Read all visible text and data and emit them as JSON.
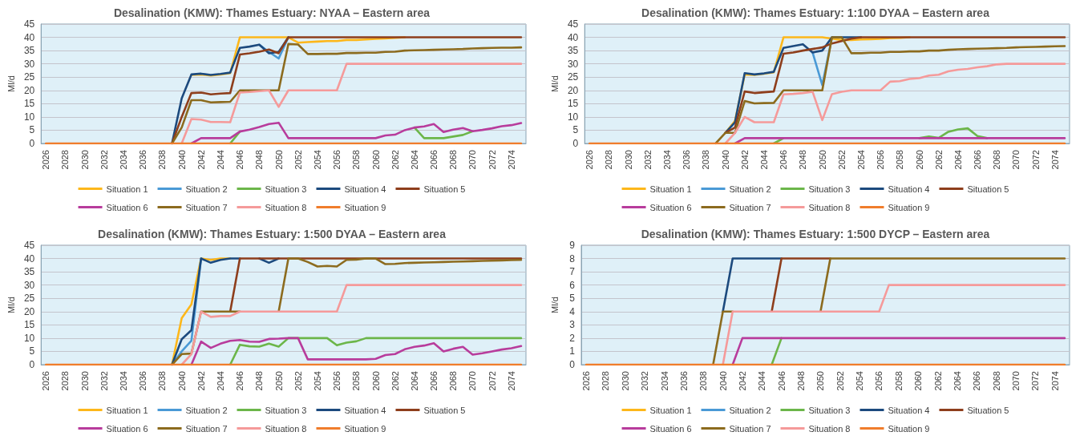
{
  "chart_data": [
    {
      "type": "line",
      "title": "Desalination (KMW): Thames Estuary: NYAA – Eastern area",
      "ylabel": "Ml/d",
      "categories": [
        "2026",
        null,
        "2028",
        null,
        "2030",
        null,
        "2032",
        null,
        "2034",
        null,
        "2036",
        null,
        "2038",
        null,
        "2040",
        null,
        "2042",
        null,
        "2044",
        null,
        "2046",
        null,
        "2048",
        null,
        "2050",
        null,
        "2052",
        null,
        "2054",
        null,
        "2056",
        null,
        "2058",
        null,
        "2060",
        null,
        "2062",
        null,
        "2064",
        null,
        "2066",
        null,
        "2068",
        null,
        "2070",
        null,
        "2072",
        null,
        "2074",
        null
      ],
      "ylim": [
        0,
        45
      ],
      "yticks": [
        0,
        5,
        10,
        15,
        20,
        25,
        30,
        35,
        40,
        45
      ],
      "grid": "y",
      "legend": "bottom",
      "marker": "none",
      "line_style": "solid",
      "series": [
        {
          "name": "Situation 1",
          "color": "#fdb71a",
          "values": [
            null,
            null,
            null,
            null,
            null,
            null,
            null,
            null,
            null,
            null,
            null,
            null,
            null,
            null,
            null,
            25.8,
            26,
            25.6,
            26,
            26.5,
            40,
            40,
            40,
            40,
            40,
            40,
            38,
            38.2,
            38.4,
            38.6,
            38.6,
            39,
            39,
            39.2,
            39.4,
            39.6,
            39.8,
            40,
            null,
            null,
            null,
            null,
            null,
            null,
            null,
            null,
            null,
            null,
            null,
            null
          ]
        },
        {
          "name": "Situation 2",
          "color": "#4a9ad6",
          "values": [
            null,
            null,
            null,
            null,
            null,
            null,
            null,
            null,
            null,
            null,
            null,
            null,
            null,
            null,
            null,
            null,
            null,
            null,
            null,
            null,
            null,
            null,
            37.2,
            34.5,
            32,
            40,
            null,
            null,
            null,
            null,
            null,
            null,
            null,
            null,
            null,
            null,
            null,
            null,
            null,
            null,
            null,
            null,
            null,
            null,
            null,
            null,
            null,
            null,
            null,
            null
          ]
        },
        {
          "name": "Situation 3",
          "color": "#6cb64a",
          "values": [
            null,
            null,
            null,
            null,
            null,
            null,
            null,
            null,
            null,
            null,
            null,
            null,
            null,
            null,
            null,
            null,
            null,
            null,
            null,
            0,
            4.5,
            null,
            null,
            null,
            null,
            null,
            null,
            null,
            null,
            null,
            null,
            null,
            null,
            null,
            null,
            null,
            null,
            null,
            6,
            2,
            2,
            2,
            2.6,
            3.2,
            4.6,
            null,
            null,
            null,
            null,
            null
          ]
        },
        {
          "name": "Situation 4",
          "color": "#1c4a7e",
          "values": [
            null,
            null,
            null,
            null,
            null,
            null,
            null,
            null,
            null,
            null,
            null,
            null,
            null,
            0,
            17,
            26,
            26.3,
            25.8,
            26.2,
            26.7,
            36,
            36.5,
            37.2,
            34,
            34.5,
            40,
            null,
            null,
            null,
            null,
            null,
            null,
            null,
            null,
            null,
            null,
            null,
            null,
            null,
            null,
            null,
            null,
            null,
            null,
            null,
            null,
            null,
            null,
            null,
            null
          ]
        },
        {
          "name": "Situation 5",
          "color": "#8e3e1c",
          "values": [
            null,
            null,
            null,
            null,
            null,
            null,
            null,
            null,
            null,
            null,
            null,
            null,
            null,
            0,
            10,
            19,
            19.2,
            18.5,
            18.8,
            19,
            33.5,
            34,
            34.6,
            35.4,
            34,
            40,
            40,
            40,
            40,
            40,
            40,
            40,
            40,
            40,
            40,
            40,
            40,
            40,
            40,
            40,
            40,
            40,
            40,
            40,
            40,
            40,
            40,
            40,
            40,
            40
          ]
        },
        {
          "name": "Situation 6",
          "color": "#b83c9c",
          "values": [
            null,
            null,
            null,
            null,
            null,
            null,
            null,
            null,
            null,
            null,
            null,
            null,
            null,
            null,
            null,
            0,
            2,
            2,
            2,
            2,
            4.5,
            5.2,
            6.2,
            7.3,
            7.8,
            2,
            2,
            2,
            2,
            2,
            2,
            2,
            2,
            2,
            2,
            3,
            3.3,
            5,
            6,
            6.4,
            7.3,
            4.3,
            5.2,
            5.8,
            4.6,
            5.1,
            5.7,
            6.5,
            6.9,
            7.7
          ]
        },
        {
          "name": "Situation 7",
          "color": "#8c6b1e",
          "values": [
            null,
            null,
            null,
            null,
            null,
            null,
            null,
            null,
            null,
            null,
            null,
            null,
            null,
            0,
            6,
            16.3,
            16.3,
            15.5,
            15.6,
            15.7,
            20,
            20,
            20,
            20,
            20,
            37.5,
            37.3,
            33.7,
            33.7,
            33.8,
            33.8,
            34.1,
            34.1,
            34.2,
            34.2,
            34.5,
            34.6,
            35,
            35.1,
            35.2,
            35.3,
            35.4,
            35.5,
            35.6,
            35.8,
            35.9,
            36,
            36.1,
            36.1,
            36.2
          ]
        },
        {
          "name": "Situation 8",
          "color": "#f59a9a",
          "values": [
            null,
            null,
            null,
            null,
            null,
            null,
            null,
            null,
            null,
            null,
            null,
            null,
            null,
            null,
            0,
            9.2,
            9,
            8.1,
            8.1,
            8,
            19.2,
            19.4,
            19.7,
            20,
            13.8,
            20,
            20,
            20,
            20,
            20,
            20,
            30,
            30,
            30,
            30,
            30,
            30,
            30,
            30,
            30,
            30,
            30,
            30,
            30,
            30,
            30,
            30,
            30,
            30,
            30
          ]
        },
        {
          "name": "Situation 9",
          "color": "#f07d2c",
          "values": [
            0,
            0,
            0,
            0,
            0,
            0,
            0,
            0,
            0,
            0,
            0,
            0,
            0,
            0,
            0,
            0,
            0,
            0,
            0,
            0,
            0,
            0,
            0,
            0,
            0,
            0,
            0,
            0,
            0,
            0,
            0,
            0,
            0,
            0,
            0,
            0,
            0,
            0,
            0,
            0,
            0,
            0,
            0,
            0,
            0,
            0,
            0,
            0,
            0,
            0
          ]
        }
      ]
    },
    {
      "type": "line",
      "title": "Desalination (KMW): Thames Estuary: 1:100 DYAA – Eastern area",
      "ylabel": "Ml/d",
      "categories": [
        "2026",
        null,
        "2028",
        null,
        "2030",
        null,
        "2032",
        null,
        "2034",
        null,
        "2036",
        null,
        "2038",
        null,
        "2040",
        null,
        "2042",
        null,
        "2044",
        null,
        "2046",
        null,
        "2048",
        null,
        "2050",
        null,
        "2052",
        null,
        "2054",
        null,
        "2056",
        null,
        "2058",
        null,
        "2060",
        null,
        "2062",
        null,
        "2064",
        null,
        "2066",
        null,
        "2068",
        null,
        "2070",
        null,
        "2072",
        null,
        "2074",
        null
      ],
      "ylim": [
        0,
        45
      ],
      "yticks": [
        0,
        5,
        10,
        15,
        20,
        25,
        30,
        35,
        40,
        45
      ],
      "grid": "y",
      "legend": "bottom",
      "marker": "none",
      "line_style": "solid",
      "series": [
        {
          "name": "Situation 1",
          "color": "#fdb71a",
          "values": [
            null,
            null,
            null,
            null,
            null,
            null,
            null,
            null,
            null,
            null,
            null,
            null,
            null,
            null,
            4,
            8.5,
            26,
            25.8,
            26.3,
            26.8,
            40,
            40,
            40,
            40,
            40,
            39.5,
            39,
            39,
            39.2,
            39.3,
            39.4,
            39.7,
            39.8,
            40,
            null,
            null,
            null,
            null,
            null,
            null,
            null,
            null,
            null,
            null,
            null,
            null,
            null,
            null,
            null,
            null
          ]
        },
        {
          "name": "Situation 2",
          "color": "#4a9ad6",
          "values": [
            null,
            null,
            null,
            null,
            null,
            null,
            null,
            null,
            null,
            null,
            null,
            null,
            null,
            null,
            null,
            null,
            null,
            null,
            null,
            null,
            null,
            null,
            null,
            34.3,
            22,
            40,
            null,
            null,
            null,
            null,
            null,
            null,
            null,
            null,
            null,
            null,
            null,
            null,
            null,
            null,
            null,
            null,
            null,
            null,
            null,
            null,
            null,
            null,
            null,
            null
          ]
        },
        {
          "name": "Situation 3",
          "color": "#6cb64a",
          "values": [
            null,
            null,
            null,
            null,
            null,
            null,
            null,
            null,
            null,
            null,
            null,
            null,
            null,
            null,
            null,
            null,
            null,
            null,
            null,
            0,
            2,
            null,
            null,
            null,
            null,
            null,
            null,
            null,
            null,
            null,
            null,
            null,
            null,
            null,
            2,
            2.6,
            2.1,
            4.4,
            5.3,
            5.7,
            2.8,
            2,
            null,
            null,
            null,
            null,
            null,
            null,
            null,
            null
          ]
        },
        {
          "name": "Situation 4",
          "color": "#1c4a7e",
          "values": [
            null,
            null,
            null,
            null,
            null,
            null,
            null,
            null,
            null,
            null,
            null,
            null,
            null,
            null,
            4,
            8,
            26.5,
            26,
            26.4,
            27,
            36,
            36.7,
            37.4,
            34.3,
            35,
            40,
            40,
            40,
            40,
            null,
            null,
            null,
            null,
            null,
            null,
            null,
            null,
            null,
            null,
            null,
            null,
            null,
            null,
            null,
            null,
            null,
            null,
            null,
            null,
            null
          ]
        },
        {
          "name": "Situation 5",
          "color": "#8e3e1c",
          "values": [
            null,
            null,
            null,
            null,
            null,
            null,
            null,
            null,
            null,
            null,
            null,
            null,
            null,
            null,
            4,
            6,
            19.6,
            19,
            19.3,
            19.6,
            33.8,
            34.3,
            35,
            35.6,
            36.2,
            37.7,
            38.6,
            39.5,
            40,
            40,
            40,
            40,
            40,
            40,
            40,
            40,
            40,
            40,
            40,
            40,
            40,
            40,
            40,
            40,
            40,
            40,
            40,
            40,
            40,
            40
          ]
        },
        {
          "name": "Situation 6",
          "color": "#b83c9c",
          "values": [
            null,
            null,
            null,
            null,
            null,
            null,
            null,
            null,
            null,
            null,
            null,
            null,
            null,
            null,
            null,
            0,
            2,
            2,
            2,
            2,
            2,
            2,
            2,
            2,
            2,
            2,
            2,
            2,
            2,
            2,
            2,
            2,
            2,
            2,
            2,
            2,
            2,
            2,
            2,
            2,
            2,
            2,
            2,
            2,
            2,
            2,
            2,
            2,
            2,
            2
          ]
        },
        {
          "name": "Situation 7",
          "color": "#8c6b1e",
          "values": [
            null,
            null,
            null,
            null,
            null,
            null,
            null,
            null,
            null,
            null,
            null,
            null,
            null,
            0,
            4,
            4,
            16,
            15.1,
            15.2,
            15.3,
            20,
            20,
            20,
            20,
            20,
            40,
            40,
            34,
            34,
            34.2,
            34.2,
            34.5,
            34.5,
            34.7,
            34.7,
            35,
            35,
            35.3,
            35.5,
            35.6,
            35.7,
            35.8,
            35.9,
            36,
            36.2,
            36.3,
            36.4,
            36.5,
            36.6,
            36.7
          ]
        },
        {
          "name": "Situation 8",
          "color": "#f59a9a",
          "values": [
            null,
            null,
            null,
            null,
            null,
            null,
            null,
            null,
            null,
            null,
            null,
            null,
            null,
            null,
            0,
            4,
            10,
            8,
            8,
            8,
            18.5,
            18.7,
            19,
            19.5,
            8.8,
            18.6,
            19.5,
            20,
            20,
            20,
            20,
            23.3,
            23.5,
            24.3,
            24.6,
            25.6,
            25.9,
            27.2,
            27.8,
            28.1,
            28.7,
            29.1,
            29.8,
            30,
            30,
            30,
            30,
            30,
            30,
            30
          ]
        },
        {
          "name": "Situation 9",
          "color": "#f07d2c",
          "values": [
            0,
            0,
            0,
            0,
            0,
            0,
            0,
            0,
            0,
            0,
            0,
            0,
            0,
            0,
            0,
            0,
            0,
            0,
            0,
            0,
            0,
            0,
            0,
            0,
            0,
            0,
            0,
            0,
            0,
            0,
            0,
            0,
            0,
            0,
            0,
            0,
            0,
            0,
            0,
            0,
            0,
            0,
            0,
            0,
            0,
            0,
            0,
            0,
            0,
            0
          ]
        }
      ]
    },
    {
      "type": "line",
      "title": "Desalination (KMW): Thames Estuary: 1:500 DYAA – Eastern area",
      "ylabel": "Ml/d",
      "categories": [
        "2026",
        null,
        "2028",
        null,
        "2030",
        null,
        "2032",
        null,
        "2034",
        null,
        "2036",
        null,
        "2038",
        null,
        "2040",
        null,
        "2042",
        null,
        "2044",
        null,
        "2046",
        null,
        "2048",
        null,
        "2050",
        null,
        "2052",
        null,
        "2054",
        null,
        "2056",
        null,
        "2058",
        null,
        "2060",
        null,
        "2062",
        null,
        "2064",
        null,
        "2066",
        null,
        "2068",
        null,
        "2070",
        null,
        "2072",
        null,
        "2074",
        null
      ],
      "ylim": [
        0,
        45
      ],
      "yticks": [
        0,
        5,
        10,
        15,
        20,
        25,
        30,
        35,
        40,
        45
      ],
      "grid": "y",
      "legend": "bottom",
      "marker": "none",
      "line_style": "solid",
      "series": [
        {
          "name": "Situation 1",
          "color": "#fdb71a",
          "values": [
            null,
            null,
            null,
            null,
            null,
            null,
            null,
            null,
            null,
            null,
            null,
            null,
            null,
            0,
            17.5,
            22.7,
            40,
            39.5,
            40,
            40,
            null,
            null,
            null,
            null,
            null,
            null,
            null,
            null,
            null,
            null,
            null,
            null,
            null,
            null,
            null,
            null,
            null,
            null,
            null,
            null,
            null,
            null,
            null,
            null,
            null,
            null,
            null,
            null,
            null,
            null
          ]
        },
        {
          "name": "Situation 2",
          "color": "#4a9ad6",
          "values": [
            null,
            null,
            null,
            null,
            null,
            null,
            null,
            null,
            null,
            null,
            null,
            null,
            null,
            0,
            5,
            9,
            40,
            null,
            null,
            null,
            null,
            null,
            null,
            null,
            null,
            null,
            null,
            null,
            null,
            null,
            null,
            null,
            null,
            null,
            null,
            null,
            null,
            null,
            null,
            null,
            null,
            null,
            null,
            null,
            null,
            null,
            null,
            null,
            null,
            null
          ]
        },
        {
          "name": "Situation 3",
          "color": "#6cb64a",
          "values": [
            null,
            null,
            null,
            null,
            null,
            null,
            null,
            null,
            null,
            null,
            null,
            null,
            null,
            null,
            null,
            null,
            null,
            null,
            null,
            0,
            7.5,
            6.9,
            6.8,
            7.9,
            6.8,
            10,
            10,
            10,
            10,
            10,
            7.3,
            8.3,
            8.8,
            10,
            10,
            10,
            10,
            10,
            10,
            10,
            10,
            10,
            10,
            10,
            10,
            10,
            10,
            10,
            10,
            10
          ]
        },
        {
          "name": "Situation 4",
          "color": "#1c4a7e",
          "values": [
            null,
            null,
            null,
            null,
            null,
            null,
            null,
            null,
            null,
            null,
            null,
            null,
            null,
            0,
            9.6,
            13,
            40,
            38.4,
            39.5,
            40,
            40,
            null,
            40,
            38.4,
            40,
            null,
            null,
            null,
            null,
            null,
            null,
            null,
            null,
            null,
            null,
            null,
            null,
            null,
            null,
            null,
            null,
            null,
            null,
            null,
            null,
            null,
            null,
            null,
            null,
            null
          ]
        },
        {
          "name": "Situation 5",
          "color": "#8e3e1c",
          "values": [
            null,
            null,
            null,
            null,
            null,
            null,
            null,
            null,
            null,
            null,
            null,
            null,
            null,
            null,
            null,
            null,
            null,
            null,
            null,
            20,
            40,
            40,
            40,
            40,
            40,
            40,
            40,
            40,
            40,
            40,
            40,
            40,
            40,
            40,
            40,
            40,
            40,
            40,
            40,
            40,
            40,
            40,
            40,
            40,
            40,
            40,
            40,
            40,
            40,
            40
          ]
        },
        {
          "name": "Situation 6",
          "color": "#b83c9c",
          "values": [
            null,
            null,
            null,
            null,
            null,
            null,
            null,
            null,
            null,
            null,
            null,
            null,
            null,
            null,
            null,
            0,
            8.7,
            6.3,
            7.9,
            9,
            9.3,
            8.7,
            8.6,
            9.7,
            9.8,
            10,
            10,
            2,
            2,
            2,
            2,
            2,
            2,
            2,
            2.2,
            3.6,
            4,
            5.8,
            6.7,
            7.2,
            8.1,
            5,
            6,
            6.7,
            3.8,
            4.3,
            5,
            5.7,
            6.2,
            7
          ]
        },
        {
          "name": "Situation 7",
          "color": "#8c6b1e",
          "values": [
            null,
            null,
            null,
            null,
            null,
            null,
            null,
            null,
            null,
            null,
            null,
            null,
            null,
            0,
            4,
            4.2,
            20,
            20,
            20,
            20,
            20,
            null,
            null,
            null,
            20,
            40,
            40,
            38.7,
            37,
            37.2,
            37,
            39.5,
            39.6,
            40,
            40,
            37.9,
            38,
            38.3,
            38.4,
            38.5,
            38.6,
            38.7,
            38.8,
            38.9,
            39,
            39.1,
            39.2,
            39.3,
            39.4,
            39.5
          ]
        },
        {
          "name": "Situation 8",
          "color": "#f59a9a",
          "values": [
            null,
            null,
            null,
            null,
            null,
            null,
            null,
            null,
            null,
            null,
            null,
            null,
            null,
            null,
            0,
            4,
            20,
            18,
            18.3,
            18.3,
            20,
            20,
            20,
            20,
            20,
            20,
            20,
            20,
            20,
            20,
            20,
            30,
            30,
            30,
            30,
            30,
            30,
            30,
            30,
            30,
            30,
            30,
            30,
            30,
            30,
            30,
            30,
            30,
            30,
            30
          ]
        },
        {
          "name": "Situation 9",
          "color": "#f07d2c",
          "values": [
            0,
            0,
            0,
            0,
            0,
            0,
            0,
            0,
            0,
            0,
            0,
            0,
            0,
            0,
            0,
            0,
            0,
            0,
            0,
            0,
            0,
            0,
            0,
            0,
            0,
            0,
            0,
            0,
            0,
            0,
            0,
            0,
            0,
            0,
            0,
            0,
            0,
            0,
            0,
            0,
            0,
            0,
            0,
            0,
            0,
            0,
            0,
            0,
            0,
            0
          ]
        }
      ]
    },
    {
      "type": "line",
      "title": "Desalination (KMW): Thames Estuary: 1:500 DYCP – Eastern area",
      "ylabel": "Ml/d",
      "categories": [
        "2026",
        null,
        "2028",
        null,
        "2030",
        null,
        "2032",
        null,
        "2034",
        null,
        "2036",
        null,
        "2038",
        null,
        "2040",
        null,
        "2042",
        null,
        "2044",
        null,
        "2046",
        null,
        "2048",
        null,
        "2050",
        null,
        "2052",
        null,
        "2054",
        null,
        "2056",
        null,
        "2058",
        null,
        "2060",
        null,
        "2062",
        null,
        "2064",
        null,
        "2066",
        null,
        "2068",
        null,
        "2070",
        null,
        "2072",
        null,
        "2074",
        null
      ],
      "ylim": [
        0,
        9
      ],
      "yticks": [
        0,
        1,
        2,
        3,
        4,
        5,
        6,
        7,
        8,
        9
      ],
      "grid": "y",
      "legend": "bottom",
      "marker": "none",
      "line_style": "solid",
      "series": [
        {
          "name": "Situation 1",
          "color": "#fdb71a",
          "values": [
            null,
            null,
            null,
            null,
            null,
            null,
            null,
            null,
            null,
            null,
            null,
            null,
            null,
            null,
            null,
            null,
            null,
            null,
            null,
            null,
            null,
            null,
            null,
            null,
            null,
            null,
            null,
            null,
            null,
            null,
            null,
            null,
            null,
            null,
            null,
            null,
            null,
            null,
            null,
            null,
            null,
            null,
            null,
            null,
            null,
            null,
            null,
            null,
            null,
            null
          ]
        },
        {
          "name": "Situation 2",
          "color": "#4a9ad6",
          "values": [
            null,
            null,
            null,
            null,
            null,
            null,
            null,
            null,
            null,
            null,
            null,
            null,
            null,
            null,
            null,
            null,
            null,
            null,
            null,
            null,
            null,
            null,
            null,
            null,
            null,
            null,
            null,
            null,
            null,
            null,
            null,
            null,
            null,
            null,
            null,
            null,
            null,
            null,
            null,
            null,
            null,
            null,
            null,
            null,
            null,
            null,
            null,
            null,
            null,
            null
          ]
        },
        {
          "name": "Situation 3",
          "color": "#6cb64a",
          "values": [
            null,
            null,
            null,
            null,
            null,
            null,
            null,
            null,
            null,
            null,
            null,
            null,
            null,
            null,
            null,
            null,
            null,
            null,
            null,
            0,
            2,
            null,
            null,
            null,
            null,
            null,
            null,
            null,
            null,
            null,
            null,
            null,
            null,
            null,
            null,
            null,
            null,
            null,
            null,
            null,
            null,
            null,
            null,
            null,
            null,
            null,
            null,
            null,
            null,
            null
          ]
        },
        {
          "name": "Situation 4",
          "color": "#1c4a7e",
          "values": [
            null,
            null,
            null,
            null,
            null,
            null,
            null,
            null,
            null,
            null,
            null,
            null,
            null,
            null,
            4,
            8,
            8,
            8,
            8,
            8,
            8,
            null,
            null,
            null,
            null,
            null,
            null,
            null,
            null,
            null,
            null,
            null,
            null,
            null,
            null,
            null,
            null,
            null,
            null,
            null,
            null,
            null,
            null,
            null,
            null,
            null,
            null,
            null,
            null,
            null
          ]
        },
        {
          "name": "Situation 5",
          "color": "#8e3e1c",
          "values": [
            null,
            null,
            null,
            null,
            null,
            null,
            null,
            null,
            null,
            null,
            null,
            null,
            null,
            null,
            null,
            null,
            null,
            null,
            null,
            4,
            8,
            8,
            8,
            8,
            8,
            8,
            null,
            null,
            null,
            null,
            null,
            null,
            null,
            null,
            null,
            null,
            null,
            null,
            null,
            null,
            null,
            null,
            null,
            null,
            null,
            null,
            null,
            null,
            null,
            null
          ]
        },
        {
          "name": "Situation 6",
          "color": "#b83c9c",
          "values": [
            null,
            null,
            null,
            null,
            null,
            null,
            null,
            null,
            null,
            null,
            null,
            null,
            null,
            null,
            null,
            0,
            2,
            2,
            2,
            2,
            2,
            2,
            2,
            2,
            2,
            2,
            2,
            2,
            2,
            2,
            2,
            2,
            2,
            2,
            2,
            2,
            2,
            2,
            2,
            2,
            2,
            2,
            2,
            2,
            2,
            2,
            2,
            2,
            2,
            2
          ]
        },
        {
          "name": "Situation 7",
          "color": "#8c6b1e",
          "values": [
            null,
            null,
            null,
            null,
            null,
            null,
            null,
            null,
            null,
            null,
            null,
            null,
            null,
            0,
            4,
            4,
            null,
            null,
            null,
            null,
            null,
            null,
            null,
            null,
            4,
            8,
            8,
            8,
            8,
            8,
            8,
            8,
            8,
            8,
            8,
            8,
            8,
            8,
            8,
            8,
            8,
            8,
            8,
            8,
            8,
            8,
            8,
            8,
            8,
            8
          ]
        },
        {
          "name": "Situation 8",
          "color": "#f59a9a",
          "values": [
            null,
            null,
            null,
            null,
            null,
            null,
            null,
            null,
            null,
            null,
            null,
            null,
            null,
            null,
            0,
            4,
            4,
            4,
            4,
            4,
            4,
            4,
            4,
            4,
            4,
            4,
            4,
            4,
            4,
            4,
            4,
            6,
            6,
            6,
            6,
            6,
            6,
            6,
            6,
            6,
            6,
            6,
            6,
            6,
            6,
            6,
            6,
            6,
            6,
            6
          ]
        },
        {
          "name": "Situation 9",
          "color": "#f07d2c",
          "values": [
            0,
            0,
            0,
            0,
            0,
            0,
            0,
            0,
            0,
            0,
            0,
            0,
            0,
            0,
            0,
            0,
            0,
            0,
            0,
            0,
            0,
            0,
            0,
            0,
            0,
            0,
            0,
            0,
            0,
            0,
            0,
            0,
            0,
            0,
            0,
            0,
            0,
            0,
            0,
            0,
            0,
            0,
            0,
            0,
            0,
            0,
            0,
            0,
            0,
            0
          ]
        }
      ]
    }
  ]
}
